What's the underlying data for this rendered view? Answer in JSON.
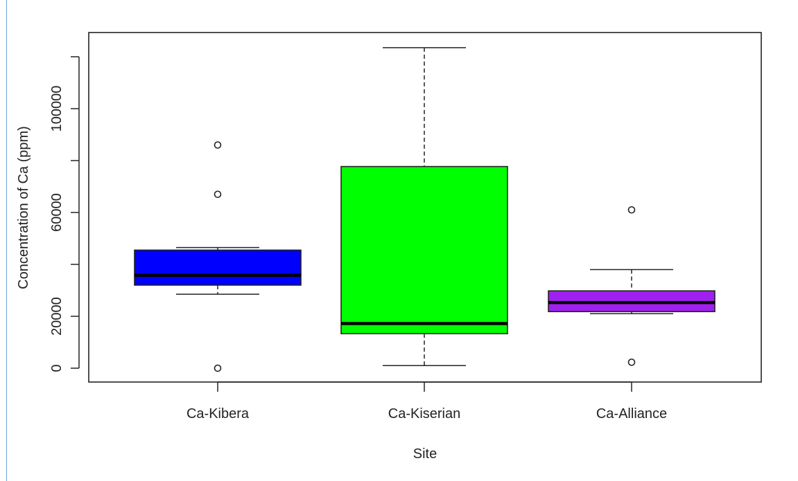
{
  "colors": {
    "frame_rule": "#6f9fd8",
    "axis": "#222222"
  },
  "chart_data": {
    "type": "boxplot",
    "title": "",
    "xlabel": "Site",
    "ylabel": "Concentration of Ca (ppm)",
    "ylim": [
      -5000,
      125000
    ],
    "y_ticks": [
      0,
      20000,
      60000,
      100000
    ],
    "y_tick_labels": [
      "0",
      "20000",
      "60000",
      "100000"
    ],
    "y_minor_ticks": [
      40000,
      80000,
      120000
    ],
    "grid": false,
    "legend": "none",
    "categories": [
      "Ca-Kibera",
      "Ca-Kiserian",
      "Ca-Alliance"
    ],
    "boxes": [
      {
        "name": "Ca-Kibera",
        "color": "#0000ff",
        "whisker_low": 28500,
        "q1": 32000,
        "median": 35800,
        "q3": 45500,
        "whisker_high": 46500,
        "outliers": [
          0,
          67000,
          86000
        ]
      },
      {
        "name": "Ca-Kiserian",
        "color": "#00ff00",
        "whisker_low": 1000,
        "q1": 13300,
        "median": 17200,
        "q3": 77700,
        "whisker_high": 123500,
        "outliers": []
      },
      {
        "name": "Ca-Alliance",
        "color": "#a020f0",
        "whisker_low": 21000,
        "q1": 21800,
        "median": 25300,
        "q3": 29800,
        "whisker_high": 38000,
        "outliers": [
          2300,
          61000
        ]
      }
    ]
  }
}
